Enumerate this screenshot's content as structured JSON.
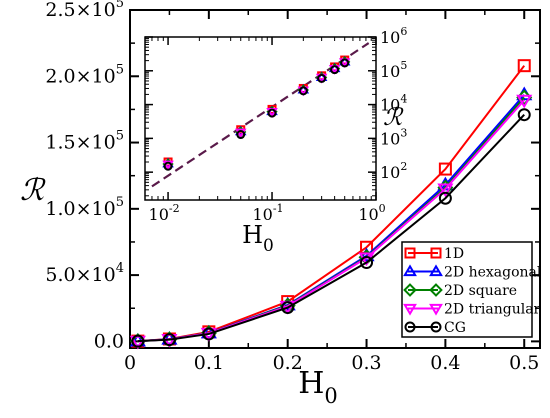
{
  "chart_data": [
    {
      "type": "line",
      "title": "",
      "xlabel": "H",
      "xlabel_sub": "0",
      "ylabel": "ℛ",
      "xlim": [
        0,
        0.52
      ],
      "ylim": [
        -5000,
        250000
      ],
      "x_ticks": [
        0,
        0.1,
        0.2,
        0.3,
        0.4,
        0.5
      ],
      "x_tick_labels": [
        "0",
        "0.1",
        "0.2",
        "0.3",
        "0.4",
        "0.5"
      ],
      "y_ticks": [
        0,
        50000,
        100000,
        150000,
        200000,
        250000
      ],
      "y_tick_labels": [
        {
          "mant": "0.0",
          "exp": "0"
        },
        {
          "mant": "5.0×10",
          "exp": "4"
        },
        {
          "mant": "1.0×10",
          "exp": "5"
        },
        {
          "mant": "1.5×10",
          "exp": "5"
        },
        {
          "mant": "2.0×10",
          "exp": "5"
        },
        {
          "mant": "2.5×10",
          "exp": "5"
        }
      ],
      "grid": false,
      "legend_position": "bottom-right",
      "x": [
        0.01,
        0.05,
        0.1,
        0.2,
        0.3,
        0.4,
        0.5
      ],
      "series": [
        {
          "name": "1D",
          "color": "#ff0000",
          "marker": "square",
          "values": [
            200,
            1800,
            7200,
            30000,
            71000,
            130000,
            208000
          ]
        },
        {
          "name": "2D hexagonal",
          "color": "#0000ff",
          "marker": "triangle-up",
          "values": [
            180,
            1600,
            6300,
            27500,
            64500,
            118000,
            186000
          ]
        },
        {
          "name": "2D square",
          "color": "#008000",
          "marker": "diamond",
          "values": [
            175,
            1550,
            6200,
            27000,
            63500,
            116000,
            184000
          ]
        },
        {
          "name": "2D triangular",
          "color": "#ff00ff",
          "marker": "triangle-down",
          "values": [
            170,
            1500,
            6100,
            26500,
            63000,
            115000,
            182000
          ]
        },
        {
          "name": "CG",
          "color": "#000000",
          "marker": "circle",
          "values": [
            150,
            1300,
            5600,
            25500,
            59500,
            108000,
            171000
          ]
        }
      ]
    },
    {
      "type": "scatter",
      "title": "",
      "xlabel": "H",
      "xlabel_sub": "0",
      "ylabel": "ℛ",
      "x_scale": "log",
      "y_scale": "log",
      "xlim": [
        0.006,
        1
      ],
      "ylim": [
        15,
        1000000
      ],
      "x_tick_labels": [
        {
          "base": "10",
          "exp": "-2"
        },
        {
          "base": "10",
          "exp": "-1"
        },
        {
          "base": "10",
          "exp": "0"
        }
      ],
      "x_ticks": [
        0.01,
        0.1,
        1
      ],
      "y_tick_labels": [
        {
          "base": "10",
          "exp": "2"
        },
        {
          "base": "10",
          "exp": "3"
        },
        {
          "base": "10",
          "exp": "4"
        },
        {
          "base": "10",
          "exp": "5"
        },
        {
          "base": "10",
          "exp": "6"
        }
      ],
      "y_ticks": [
        100,
        1000,
        10000,
        100000,
        1000000
      ],
      "y_axis_side": "right",
      "x": [
        0.01,
        0.05,
        0.1,
        0.2,
        0.3,
        0.4,
        0.5
      ],
      "series_markers": [
        {
          "color": "#ff0000",
          "marker": "square",
          "values": [
            200,
            1800,
            7200,
            30000,
            71000,
            130000,
            208000
          ]
        },
        {
          "color": "#0000ff",
          "marker": "triangle-up",
          "values": [
            180,
            1600,
            6300,
            27500,
            64500,
            118000,
            186000
          ]
        },
        {
          "color": "#008000",
          "marker": "diamond",
          "values": [
            175,
            1550,
            6200,
            27000,
            63500,
            116000,
            184000
          ]
        },
        {
          "color": "#ff00ff",
          "marker": "triangle-down",
          "values": [
            170,
            1500,
            6100,
            26500,
            63000,
            115000,
            182000
          ]
        },
        {
          "color": "#000000",
          "marker": "circle",
          "values": [
            150,
            1300,
            5600,
            25500,
            59500,
            108000,
            171000
          ]
        }
      ],
      "reference_line": {
        "style": "dashed",
        "color": "#5a1a4a",
        "points": [
          [
            0.007,
            38
          ],
          [
            0.85,
            660000
          ]
        ]
      }
    }
  ]
}
